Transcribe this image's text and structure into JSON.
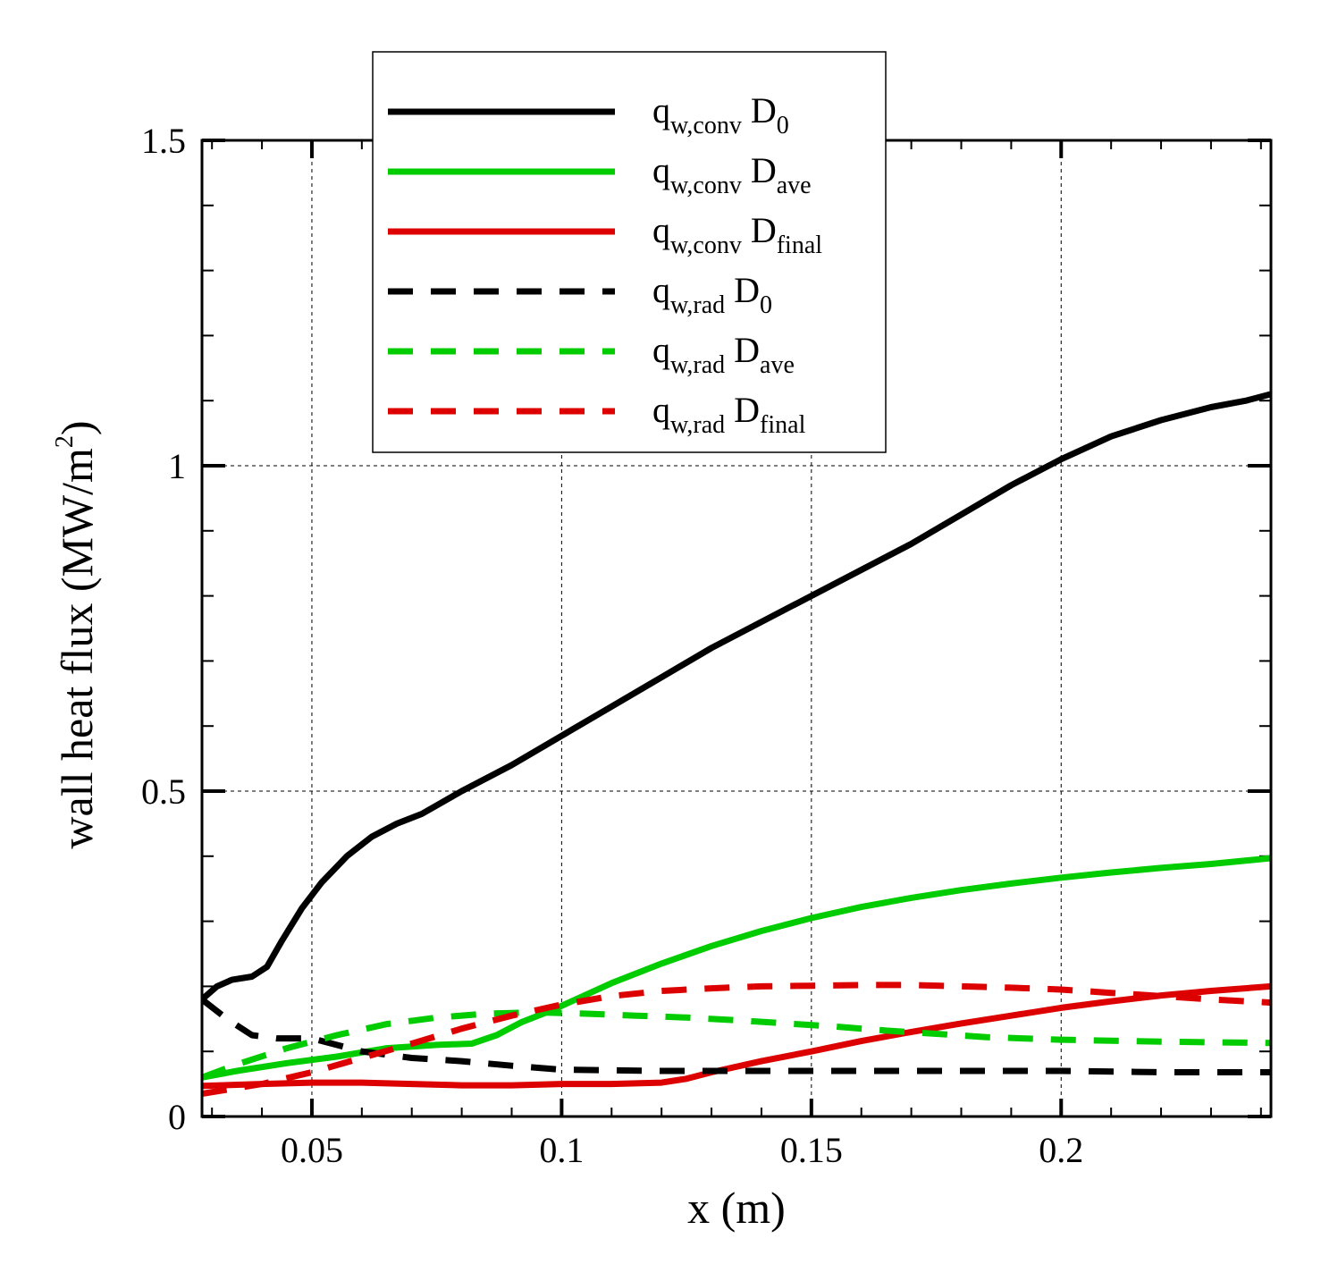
{
  "chart_data": {
    "type": "line",
    "title": "",
    "xlabel": "x (m)",
    "ylabel": "wall heat flux (MW/m²)",
    "ylabel_parts": {
      "main": "wall heat flux (MW/m",
      "sup": "2",
      "tail": ")"
    },
    "xlim": [
      0.028,
      0.242
    ],
    "ylim": [
      0,
      1.5
    ],
    "x_ticks": [
      {
        "value": 0.05,
        "label": "0.05"
      },
      {
        "value": 0.1,
        "label": "0.1"
      },
      {
        "value": 0.15,
        "label": "0.15"
      },
      {
        "value": 0.2,
        "label": "0.2"
      }
    ],
    "y_ticks": [
      {
        "value": 0,
        "label": "0"
      },
      {
        "value": 0.5,
        "label": "0.5"
      },
      {
        "value": 1,
        "label": "1"
      },
      {
        "value": 1.5,
        "label": "1.5"
      }
    ],
    "grid": true,
    "legend_position": "top-center",
    "series": [
      {
        "name": "q_w,conv D_0",
        "label": {
          "q": "q",
          "qsub": "w,conv",
          "d": "D",
          "dsub": "0"
        },
        "color": "#000000",
        "dash": "solid",
        "x": [
          0.028,
          0.031,
          0.034,
          0.038,
          0.041,
          0.044,
          0.048,
          0.052,
          0.057,
          0.062,
          0.067,
          0.072,
          0.08,
          0.09,
          0.1,
          0.11,
          0.12,
          0.13,
          0.14,
          0.15,
          0.16,
          0.17,
          0.18,
          0.19,
          0.2,
          0.21,
          0.22,
          0.23,
          0.237,
          0.242
        ],
        "y": [
          0.18,
          0.2,
          0.21,
          0.215,
          0.23,
          0.27,
          0.32,
          0.36,
          0.4,
          0.43,
          0.45,
          0.465,
          0.5,
          0.54,
          0.585,
          0.63,
          0.675,
          0.72,
          0.76,
          0.8,
          0.84,
          0.88,
          0.925,
          0.97,
          1.01,
          1.045,
          1.07,
          1.09,
          1.1,
          1.11
        ]
      },
      {
        "name": "q_w,conv D_ave",
        "label": {
          "q": "q",
          "qsub": "w,conv",
          "d": "D",
          "dsub": "ave"
        },
        "color": "#00cc00",
        "dash": "solid",
        "x": [
          0.028,
          0.035,
          0.045,
          0.055,
          0.065,
          0.075,
          0.082,
          0.087,
          0.092,
          0.097,
          0.1,
          0.11,
          0.12,
          0.13,
          0.14,
          0.15,
          0.16,
          0.17,
          0.18,
          0.19,
          0.2,
          0.21,
          0.22,
          0.23,
          0.242
        ],
        "y": [
          0.06,
          0.07,
          0.082,
          0.092,
          0.105,
          0.11,
          0.112,
          0.125,
          0.145,
          0.16,
          0.17,
          0.205,
          0.235,
          0.262,
          0.285,
          0.305,
          0.322,
          0.336,
          0.348,
          0.358,
          0.367,
          0.375,
          0.382,
          0.388,
          0.397
        ]
      },
      {
        "name": "q_w,conv D_final",
        "label": {
          "q": "q",
          "qsub": "w,conv",
          "d": "D",
          "dsub": "final"
        },
        "color": "#dd0000",
        "dash": "solid",
        "x": [
          0.028,
          0.04,
          0.05,
          0.06,
          0.07,
          0.08,
          0.09,
          0.1,
          0.11,
          0.12,
          0.125,
          0.13,
          0.14,
          0.15,
          0.16,
          0.17,
          0.18,
          0.19,
          0.2,
          0.21,
          0.22,
          0.23,
          0.242
        ],
        "y": [
          0.047,
          0.05,
          0.052,
          0.052,
          0.05,
          0.048,
          0.048,
          0.05,
          0.05,
          0.052,
          0.058,
          0.068,
          0.085,
          0.1,
          0.116,
          0.13,
          0.143,
          0.155,
          0.167,
          0.177,
          0.186,
          0.193,
          0.2
        ]
      },
      {
        "name": "q_w,rad D_0",
        "label": {
          "q": "q",
          "qsub": "w,rad",
          "d": "D",
          "dsub": "0"
        },
        "color": "#000000",
        "dash": "dashed",
        "x": [
          0.028,
          0.033,
          0.038,
          0.043,
          0.05,
          0.06,
          0.07,
          0.08,
          0.09,
          0.1,
          0.12,
          0.14,
          0.16,
          0.18,
          0.2,
          0.22,
          0.242
        ],
        "y": [
          0.18,
          0.15,
          0.125,
          0.12,
          0.12,
          0.1,
          0.09,
          0.085,
          0.078,
          0.072,
          0.07,
          0.07,
          0.07,
          0.07,
          0.07,
          0.068,
          0.068
        ]
      },
      {
        "name": "q_w,rad D_ave",
        "label": {
          "q": "q",
          "qsub": "w,rad",
          "d": "D",
          "dsub": "ave"
        },
        "color": "#00cc00",
        "dash": "dashed",
        "x": [
          0.028,
          0.035,
          0.045,
          0.055,
          0.065,
          0.075,
          0.085,
          0.095,
          0.105,
          0.115,
          0.125,
          0.135,
          0.145,
          0.155,
          0.165,
          0.175,
          0.185,
          0.2,
          0.22,
          0.242
        ],
        "y": [
          0.06,
          0.08,
          0.105,
          0.125,
          0.142,
          0.152,
          0.158,
          0.16,
          0.158,
          0.155,
          0.152,
          0.148,
          0.143,
          0.138,
          0.132,
          0.127,
          0.122,
          0.118,
          0.115,
          0.113
        ]
      },
      {
        "name": "q_w,rad D_final",
        "label": {
          "q": "q",
          "qsub": "w,rad",
          "d": "D",
          "dsub": "final"
        },
        "color": "#dd0000",
        "dash": "dashed",
        "x": [
          0.028,
          0.04,
          0.05,
          0.06,
          0.07,
          0.08,
          0.09,
          0.1,
          0.11,
          0.12,
          0.13,
          0.14,
          0.15,
          0.16,
          0.17,
          0.18,
          0.19,
          0.2,
          0.21,
          0.22,
          0.23,
          0.242
        ],
        "y": [
          0.035,
          0.05,
          0.068,
          0.09,
          0.112,
          0.135,
          0.155,
          0.172,
          0.185,
          0.193,
          0.197,
          0.2,
          0.201,
          0.202,
          0.202,
          0.2,
          0.198,
          0.195,
          0.19,
          0.185,
          0.18,
          0.175
        ]
      }
    ]
  }
}
